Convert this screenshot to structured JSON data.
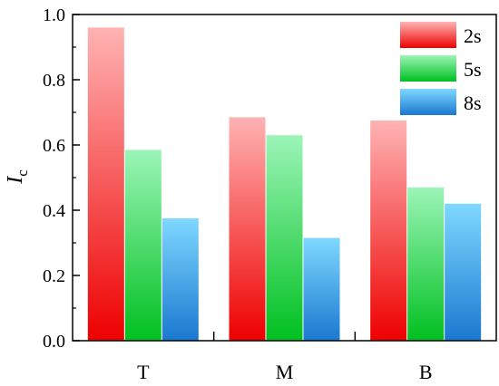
{
  "chart_data": {
    "type": "bar",
    "ylabel_main": "I",
    "ylabel_sub": "c",
    "xlabel": "",
    "ylim": [
      0,
      1.0
    ],
    "yticks": [
      "0.0",
      "0.2",
      "0.4",
      "0.6",
      "0.8",
      "1.0"
    ],
    "categories": [
      "T",
      "M",
      "B"
    ],
    "series": [
      {
        "name": "2s",
        "values": [
          0.96,
          0.685,
          0.675
        ],
        "color_top": "#ffb3b3",
        "color_bottom": "#ee0000"
      },
      {
        "name": "5s",
        "values": [
          0.585,
          0.63,
          0.47
        ],
        "color_top": "#9cf5b8",
        "color_bottom": "#00c020"
      },
      {
        "name": "8s",
        "values": [
          0.375,
          0.315,
          0.42
        ],
        "color_top": "#7fd8ff",
        "color_bottom": "#1a78d0"
      }
    ],
    "legend_position": "top-right",
    "grid": false
  }
}
